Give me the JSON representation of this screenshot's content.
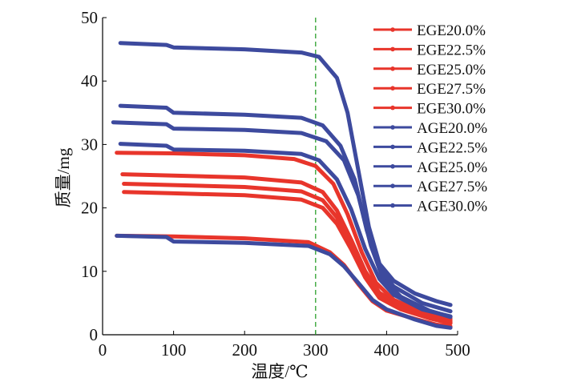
{
  "chart_data": {
    "type": "line",
    "title": "",
    "xlabel": "温度/℃",
    "ylabel": "质量/mg",
    "xlim": [
      0,
      500
    ],
    "ylim": [
      0,
      50
    ],
    "xticks": [
      "0",
      "100",
      "200",
      "300",
      "400",
      "500"
    ],
    "yticks": [
      "0",
      "10",
      "20",
      "30",
      "40",
      "50"
    ],
    "grid": false,
    "legend_position": "top-right",
    "reference_line": {
      "x": 300,
      "style": "dashed",
      "color": "#2ca02c"
    },
    "series": [
      {
        "name": "EGE20.0%",
        "color": "#e8352b",
        "points": [
          [
            20,
            15.6
          ],
          [
            100,
            15.5
          ],
          [
            200,
            15.2
          ],
          [
            290,
            14.6
          ],
          [
            320,
            13.0
          ],
          [
            340,
            11.0
          ],
          [
            360,
            8.0
          ],
          [
            380,
            5.3
          ],
          [
            400,
            3.8
          ],
          [
            440,
            2.5
          ],
          [
            470,
            1.6
          ],
          [
            490,
            1.3
          ]
        ]
      },
      {
        "name": "EGE22.5%",
        "color": "#e8352b",
        "points": [
          [
            30,
            22.5
          ],
          [
            100,
            22.3
          ],
          [
            200,
            22.0
          ],
          [
            280,
            21.3
          ],
          [
            310,
            20.0
          ],
          [
            330,
            17.5
          ],
          [
            350,
            13.5
          ],
          [
            370,
            9.0
          ],
          [
            390,
            5.8
          ],
          [
            420,
            4.0
          ],
          [
            460,
            2.6
          ],
          [
            490,
            1.8
          ]
        ]
      },
      {
        "name": "EGE25.0%",
        "color": "#e8352b",
        "points": [
          [
            30,
            23.8
          ],
          [
            100,
            23.6
          ],
          [
            200,
            23.3
          ],
          [
            280,
            22.6
          ],
          [
            310,
            21.2
          ],
          [
            330,
            18.5
          ],
          [
            350,
            14.3
          ],
          [
            370,
            9.5
          ],
          [
            390,
            6.2
          ],
          [
            420,
            4.3
          ],
          [
            460,
            2.8
          ],
          [
            490,
            2.0
          ]
        ]
      },
      {
        "name": "EGE27.5%",
        "color": "#e8352b",
        "points": [
          [
            28,
            25.3
          ],
          [
            100,
            25.1
          ],
          [
            200,
            24.8
          ],
          [
            280,
            24.0
          ],
          [
            310,
            22.5
          ],
          [
            330,
            19.6
          ],
          [
            350,
            15.0
          ],
          [
            370,
            10.0
          ],
          [
            390,
            6.6
          ],
          [
            420,
            4.6
          ],
          [
            460,
            3.0
          ],
          [
            490,
            2.2
          ]
        ]
      },
      {
        "name": "EGE30.0%",
        "color": "#e8352b",
        "points": [
          [
            20,
            28.7
          ],
          [
            100,
            28.6
          ],
          [
            200,
            28.3
          ],
          [
            270,
            27.7
          ],
          [
            300,
            26.6
          ],
          [
            325,
            23.8
          ],
          [
            345,
            19.0
          ],
          [
            365,
            13.0
          ],
          [
            385,
            8.2
          ],
          [
            410,
            5.5
          ],
          [
            450,
            3.6
          ],
          [
            490,
            2.5
          ]
        ]
      },
      {
        "name": "AGE20.0%",
        "color": "#3d4a9e",
        "points": [
          [
            20,
            15.6
          ],
          [
            90,
            15.4
          ],
          [
            100,
            14.7
          ],
          [
            200,
            14.5
          ],
          [
            290,
            14.0
          ],
          [
            320,
            12.7
          ],
          [
            340,
            10.8
          ],
          [
            360,
            8.2
          ],
          [
            380,
            5.5
          ],
          [
            400,
            4.0
          ],
          [
            440,
            2.4
          ],
          [
            470,
            1.4
          ],
          [
            490,
            1.1
          ]
        ]
      },
      {
        "name": "AGE22.5%",
        "color": "#3d4a9e",
        "points": [
          [
            15,
            33.5
          ],
          [
            90,
            33.2
          ],
          [
            100,
            32.5
          ],
          [
            200,
            32.3
          ],
          [
            280,
            31.8
          ],
          [
            315,
            30.5
          ],
          [
            340,
            27.5
          ],
          [
            360,
            22.0
          ],
          [
            378,
            14.0
          ],
          [
            395,
            8.8
          ],
          [
            420,
            6.0
          ],
          [
            460,
            3.8
          ],
          [
            490,
            2.8
          ]
        ]
      },
      {
        "name": "AGE25.0%",
        "color": "#3d4a9e",
        "points": [
          [
            25,
            46.0
          ],
          [
            90,
            45.7
          ],
          [
            100,
            45.3
          ],
          [
            200,
            45.0
          ],
          [
            280,
            44.5
          ],
          [
            305,
            43.8
          ],
          [
            330,
            40.5
          ],
          [
            345,
            35.0
          ],
          [
            360,
            26.0
          ],
          [
            375,
            17.0
          ],
          [
            390,
            11.2
          ],
          [
            410,
            8.5
          ],
          [
            440,
            6.5
          ],
          [
            470,
            5.3
          ],
          [
            490,
            4.7
          ]
        ]
      },
      {
        "name": "AGE27.5%",
        "color": "#3d4a9e",
        "points": [
          [
            25,
            36.1
          ],
          [
            90,
            35.8
          ],
          [
            100,
            35.0
          ],
          [
            200,
            34.7
          ],
          [
            280,
            34.2
          ],
          [
            310,
            33.0
          ],
          [
            335,
            29.8
          ],
          [
            355,
            24.5
          ],
          [
            372,
            16.5
          ],
          [
            390,
            10.3
          ],
          [
            410,
            7.6
          ],
          [
            450,
            5.0
          ],
          [
            490,
            3.7
          ]
        ]
      },
      {
        "name": "AGE30.0%",
        "color": "#3d4a9e",
        "points": [
          [
            25,
            30.1
          ],
          [
            90,
            29.8
          ],
          [
            100,
            29.2
          ],
          [
            200,
            29.0
          ],
          [
            280,
            28.5
          ],
          [
            305,
            27.5
          ],
          [
            330,
            24.5
          ],
          [
            350,
            19.8
          ],
          [
            370,
            13.5
          ],
          [
            390,
            8.8
          ],
          [
            410,
            6.3
          ],
          [
            450,
            4.0
          ],
          [
            490,
            2.9
          ]
        ]
      }
    ]
  }
}
